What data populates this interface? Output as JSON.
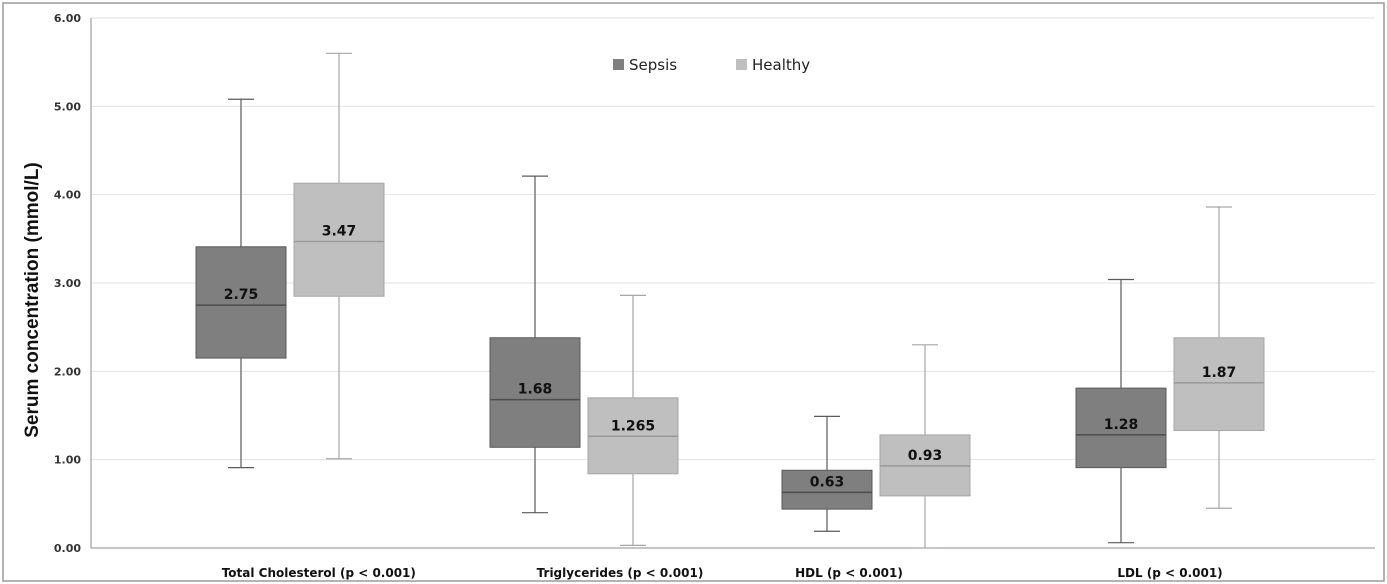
{
  "chart_data": {
    "type": "box",
    "ylabel": "Serum concentration (mmol/L)",
    "ylim": [
      0,
      6
    ],
    "yticks": [
      "0.00",
      "1.00",
      "2.00",
      "3.00",
      "4.00",
      "5.00",
      "6.00"
    ],
    "grid": true,
    "legend_position": "top-center",
    "categories": [
      "Total Cholesterol (p < 0.001)",
      "Triglycerides (p < 0.001)",
      "HDL (p < 0.001)",
      "LDL (p < 0.001)"
    ],
    "series": [
      {
        "name": "Sepsis",
        "color": "#7f7f7f",
        "boxes": [
          {
            "min": 0.91,
            "q1": 2.15,
            "median": 2.75,
            "q3": 3.41,
            "max": 5.08,
            "label": "2.75"
          },
          {
            "min": 0.4,
            "q1": 1.14,
            "median": 1.68,
            "q3": 2.38,
            "max": 4.21,
            "label": "1.68"
          },
          {
            "min": 0.19,
            "q1": 0.44,
            "median": 0.63,
            "q3": 0.88,
            "max": 1.49,
            "label": "0.63"
          },
          {
            "min": 0.06,
            "q1": 0.91,
            "median": 1.28,
            "q3": 1.81,
            "max": 3.04,
            "label": "1.28"
          }
        ]
      },
      {
        "name": "Healthy",
        "color": "#bfbfbf",
        "boxes": [
          {
            "min": 1.01,
            "q1": 2.85,
            "median": 3.47,
            "q3": 4.13,
            "max": 5.6,
            "label": "3.47"
          },
          {
            "min": 0.03,
            "q1": 0.84,
            "median": 1.265,
            "q3": 1.7,
            "max": 2.86,
            "label": "1.265"
          },
          {
            "min": 0.0,
            "q1": 0.59,
            "median": 0.93,
            "q3": 1.28,
            "max": 2.3,
            "label": "0.93"
          },
          {
            "min": 0.45,
            "q1": 1.33,
            "median": 1.87,
            "q3": 2.38,
            "max": 3.86,
            "label": "1.87"
          }
        ]
      }
    ]
  }
}
